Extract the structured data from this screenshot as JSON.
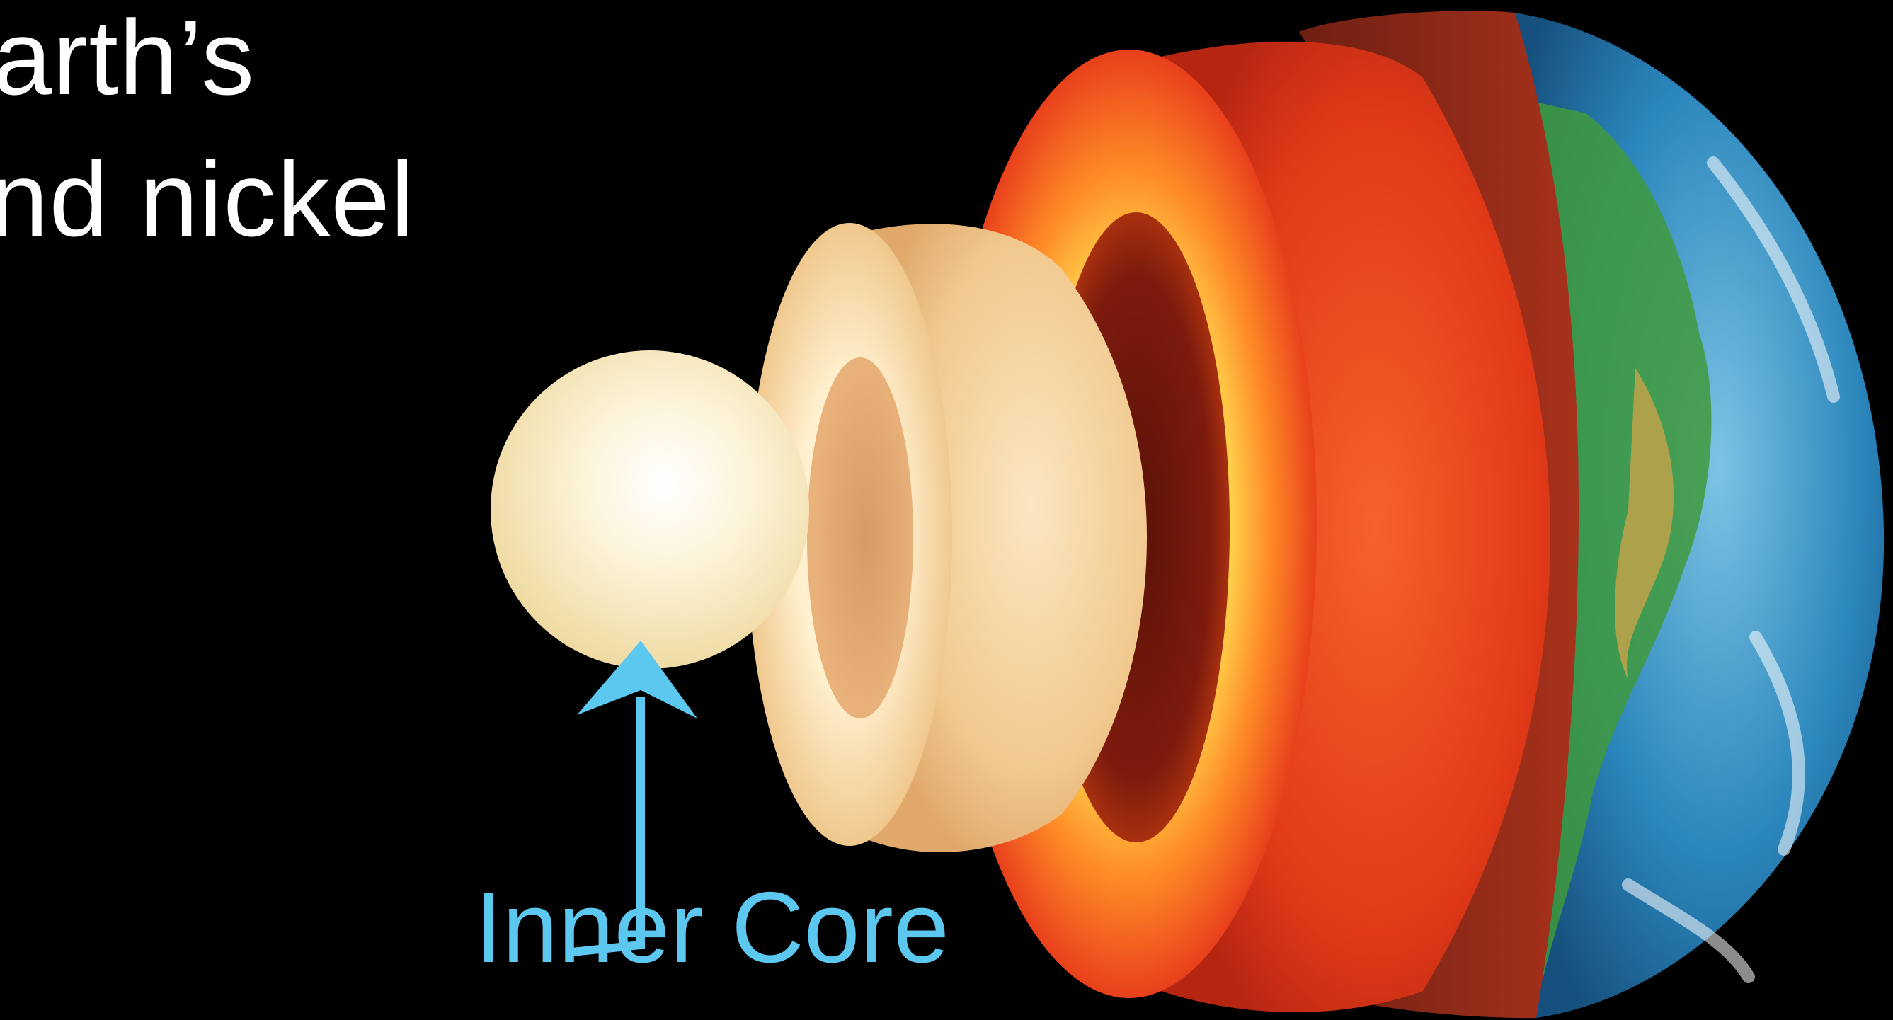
{
  "slide": {
    "title_line_1": "arth’s",
    "title_line_2": "nd nickel"
  },
  "callout": {
    "label": "Inner Core",
    "color": "#5cc8f0"
  },
  "colors": {
    "background": "#000000",
    "title_text": "#ffffff",
    "inner_core": "#f9e9b8",
    "outer_core": "#f3cf92",
    "mantle": "#e8401c",
    "crust": "#b23a22",
    "ocean": "#2d8cc0",
    "land": "#3f9a3c"
  },
  "icons": {
    "arrow": "up-arrow-icon",
    "earth": "earth-cutaway-illustration"
  }
}
